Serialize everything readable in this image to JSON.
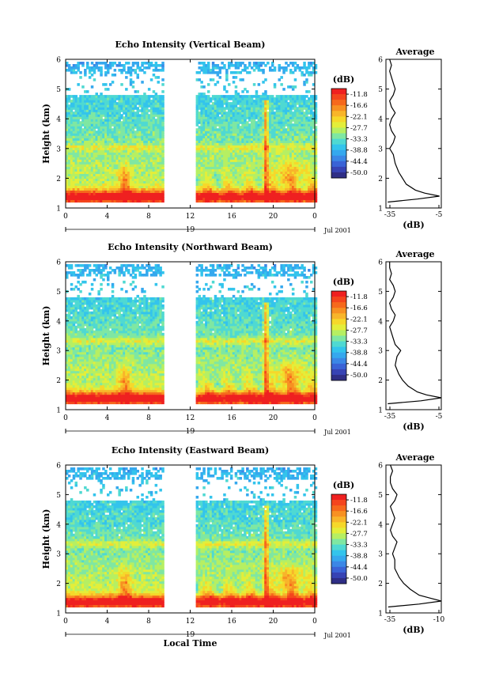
{
  "x_axis": {
    "tick_labels": [
      "0",
      "4",
      "8",
      "12",
      "16",
      "20",
      "0"
    ],
    "day_label": "19",
    "date_label": "Jul 2001",
    "xlabel": "Local Time"
  },
  "colorbar": {
    "unit_label": "(dB)",
    "tick_labels": [
      "-11.8",
      "-16.6",
      "-22.1",
      "-27.7",
      "-33.3",
      "-38.8",
      "-44.4",
      "-50.0"
    ],
    "colors": [
      "#ef2020",
      "#f4451d",
      "#f6691c",
      "#f79122",
      "#f8b52a",
      "#f6d82a",
      "#e3ee3a",
      "#b6ef62",
      "#7fe7a2",
      "#4fd9d2",
      "#33c4ec",
      "#35a8ee",
      "#3b87e6",
      "#3a63d6",
      "#3743b4",
      "#2f2e86"
    ]
  },
  "chart_data": [
    {
      "type": "heatmap",
      "title": "Echo Intensity (Vertical Beam)",
      "ylabel": "Height (km)",
      "x_unit": "local time (h)",
      "xlim": [
        0,
        24
      ],
      "ylim": [
        1,
        6
      ],
      "y_tick_labels": [
        "1",
        "2",
        "3",
        "4",
        "5",
        "6"
      ],
      "data_gaps": [
        [
          9.5,
          12.5
        ]
      ],
      "zlim": [
        -50.0,
        -11.8
      ],
      "avg_profile": {
        "title": "Average",
        "xlabel": "(dB)",
        "xlim": [
          -35,
          -5
        ],
        "x_tick_labels": [
          "-35",
          "-5"
        ],
        "heights": [
          1.2,
          1.3,
          1.4,
          1.5,
          1.6,
          1.8,
          2.0,
          2.2,
          2.5,
          2.8,
          3.0,
          3.2,
          3.4,
          3.6,
          3.8,
          4.0,
          4.2,
          4.4,
          4.6,
          4.8,
          5.0,
          5.2,
          5.4,
          5.6,
          5.8,
          6.0
        ],
        "values": [
          -34,
          -18,
          -6,
          -14,
          -19,
          -24,
          -26,
          -28,
          -30,
          -31,
          -33,
          -31,
          -30,
          -32,
          -33,
          -32,
          -30,
          -32,
          -33,
          -31,
          -30,
          -31,
          -32,
          -33,
          -32,
          -33
        ]
      }
    },
    {
      "type": "heatmap",
      "title": "Echo Intensity (Northward Beam)",
      "ylabel": "Height (km)",
      "x_unit": "local time (h)",
      "xlim": [
        0,
        24
      ],
      "ylim": [
        1,
        6
      ],
      "y_tick_labels": [
        "1",
        "2",
        "3",
        "4",
        "5",
        "6"
      ],
      "data_gaps": [
        [
          9.5,
          12.5
        ]
      ],
      "zlim": [
        -50.0,
        -11.8
      ],
      "avg_profile": {
        "title": "Average",
        "xlabel": "(dB)",
        "xlim": [
          -35,
          -5
        ],
        "x_tick_labels": [
          "-35",
          "-5"
        ],
        "heights": [
          1.2,
          1.3,
          1.4,
          1.5,
          1.6,
          1.8,
          2.0,
          2.2,
          2.5,
          2.8,
          3.0,
          3.2,
          3.4,
          3.6,
          3.8,
          4.0,
          4.2,
          4.4,
          4.6,
          4.8,
          5.0,
          5.2,
          5.4,
          5.6,
          5.8,
          6.0
        ],
        "values": [
          -34,
          -16,
          -5,
          -13,
          -18,
          -23,
          -26,
          -28,
          -30,
          -29,
          -27,
          -30,
          -31,
          -32,
          -33,
          -31,
          -30,
          -32,
          -33,
          -31,
          -30,
          -31,
          -33,
          -32,
          -33,
          -33
        ]
      }
    },
    {
      "type": "heatmap",
      "title": "Echo Intensity (Eastward Beam)",
      "ylabel": "Height (km)",
      "xlabel": "Local Time",
      "x_unit": "local time (h)",
      "xlim": [
        0,
        24
      ],
      "ylim": [
        1,
        6
      ],
      "y_tick_labels": [
        "1",
        "2",
        "3",
        "4",
        "5",
        "6"
      ],
      "data_gaps": [
        [
          9.5,
          12.5
        ]
      ],
      "zlim": [
        -50.0,
        -11.8
      ],
      "avg_profile": {
        "title": "Average",
        "xlabel": "(dB)",
        "xlim": [
          -35,
          -10
        ],
        "x_tick_labels": [
          "-35",
          "-10"
        ],
        "heights": [
          1.2,
          1.3,
          1.4,
          1.5,
          1.6,
          1.8,
          2.0,
          2.2,
          2.5,
          2.8,
          3.0,
          3.2,
          3.4,
          3.6,
          3.8,
          4.0,
          4.2,
          4.4,
          4.6,
          4.8,
          5.0,
          5.2,
          5.4,
          5.6,
          5.8,
          6.0
        ],
        "values": [
          -34,
          -20,
          -10,
          -15,
          -20,
          -24,
          -27,
          -29,
          -31,
          -31,
          -32,
          -31,
          -30,
          -32,
          -33,
          -32,
          -31,
          -32,
          -33,
          -31,
          -30,
          -32,
          -33,
          -33,
          -32,
          -33
        ]
      }
    }
  ]
}
